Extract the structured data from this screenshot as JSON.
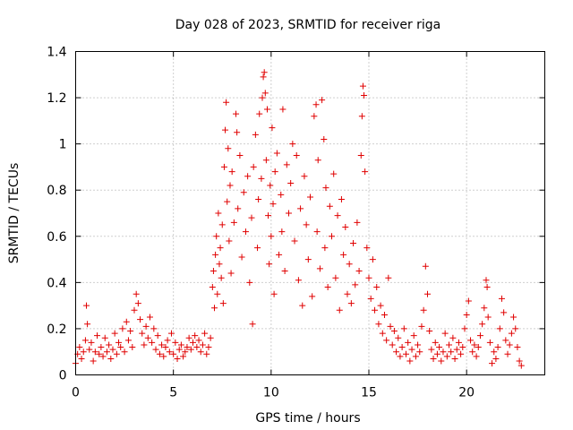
{
  "chart_data": {
    "type": "scatter",
    "title": "Day 028 of 2023, SRMTID for receiver riga",
    "xlabel": "GPS time / hours",
    "ylabel": "SRMTID / TECUs",
    "xlim": [
      0,
      24
    ],
    "ylim": [
      0,
      1.4
    ],
    "xticks": [
      0,
      5,
      10,
      15,
      20
    ],
    "xtick_labels": [
      "0",
      "5",
      "10",
      "15",
      "20"
    ],
    "yticks": [
      0,
      0.2,
      0.4,
      0.6,
      0.8,
      1.0,
      1.2,
      1.4
    ],
    "ytick_labels": [
      "0",
      "0.2",
      "0.4",
      "0.6",
      "0.8",
      "1",
      "1.2",
      "1.4"
    ],
    "grid": true,
    "marker": "+",
    "color": "#e00000",
    "series": [
      {
        "name": "SRMTID",
        "points": [
          [
            0.0,
            0.05
          ],
          [
            0.1,
            0.09
          ],
          [
            0.2,
            0.12
          ],
          [
            0.3,
            0.07
          ],
          [
            0.4,
            0.1
          ],
          [
            0.5,
            0.15
          ],
          [
            0.55,
            0.3
          ],
          [
            0.6,
            0.22
          ],
          [
            0.7,
            0.11
          ],
          [
            0.8,
            0.14
          ],
          [
            0.9,
            0.06
          ],
          [
            1.0,
            0.1
          ],
          [
            1.1,
            0.17
          ],
          [
            1.2,
            0.09
          ],
          [
            1.3,
            0.12
          ],
          [
            1.4,
            0.08
          ],
          [
            1.5,
            0.16
          ],
          [
            1.6,
            0.1
          ],
          [
            1.7,
            0.13
          ],
          [
            1.8,
            0.07
          ],
          [
            1.9,
            0.11
          ],
          [
            2.0,
            0.18
          ],
          [
            2.1,
            0.09
          ],
          [
            2.2,
            0.14
          ],
          [
            2.3,
            0.12
          ],
          [
            2.4,
            0.2
          ],
          [
            2.5,
            0.1
          ],
          [
            2.6,
            0.23
          ],
          [
            2.7,
            0.15
          ],
          [
            2.8,
            0.19
          ],
          [
            2.9,
            0.12
          ],
          [
            3.0,
            0.28
          ],
          [
            3.1,
            0.35
          ],
          [
            3.2,
            0.31
          ],
          [
            3.3,
            0.24
          ],
          [
            3.4,
            0.18
          ],
          [
            3.5,
            0.13
          ],
          [
            3.6,
            0.21
          ],
          [
            3.7,
            0.16
          ],
          [
            3.8,
            0.25
          ],
          [
            3.9,
            0.14
          ],
          [
            4.0,
            0.2
          ],
          [
            4.1,
            0.11
          ],
          [
            4.2,
            0.17
          ],
          [
            4.3,
            0.09
          ],
          [
            4.4,
            0.13
          ],
          [
            4.5,
            0.08
          ],
          [
            4.6,
            0.12
          ],
          [
            4.7,
            0.15
          ],
          [
            4.8,
            0.1
          ],
          [
            4.9,
            0.18
          ],
          [
            5.0,
            0.09
          ],
          [
            5.1,
            0.14
          ],
          [
            5.2,
            0.07
          ],
          [
            5.3,
            0.11
          ],
          [
            5.4,
            0.13
          ],
          [
            5.5,
            0.08
          ],
          [
            5.6,
            0.1
          ],
          [
            5.7,
            0.12
          ],
          [
            5.8,
            0.16
          ],
          [
            5.9,
            0.11
          ],
          [
            6.0,
            0.14
          ],
          [
            6.1,
            0.17
          ],
          [
            6.2,
            0.12
          ],
          [
            6.3,
            0.15
          ],
          [
            6.4,
            0.1
          ],
          [
            6.5,
            0.13
          ],
          [
            6.6,
            0.18
          ],
          [
            6.7,
            0.09
          ],
          [
            6.8,
            0.12
          ],
          [
            6.9,
            0.16
          ],
          [
            7.0,
            0.38
          ],
          [
            7.05,
            0.45
          ],
          [
            7.1,
            0.29
          ],
          [
            7.15,
            0.52
          ],
          [
            7.2,
            0.6
          ],
          [
            7.25,
            0.35
          ],
          [
            7.3,
            0.7
          ],
          [
            7.35,
            0.48
          ],
          [
            7.4,
            0.55
          ],
          [
            7.45,
            0.42
          ],
          [
            7.5,
            0.65
          ],
          [
            7.55,
            0.31
          ],
          [
            7.6,
            0.9
          ],
          [
            7.65,
            1.06
          ],
          [
            7.7,
            1.18
          ],
          [
            7.75,
            0.75
          ],
          [
            7.8,
            0.98
          ],
          [
            7.85,
            0.58
          ],
          [
            7.9,
            0.82
          ],
          [
            7.95,
            0.44
          ],
          [
            8.0,
            0.88
          ],
          [
            8.1,
            0.66
          ],
          [
            8.2,
            1.13
          ],
          [
            8.25,
            1.05
          ],
          [
            8.3,
            0.72
          ],
          [
            8.4,
            0.95
          ],
          [
            8.5,
            0.51
          ],
          [
            8.6,
            0.79
          ],
          [
            8.7,
            0.62
          ],
          [
            8.8,
            0.86
          ],
          [
            8.9,
            0.4
          ],
          [
            9.0,
            0.68
          ],
          [
            9.05,
            0.22
          ],
          [
            9.1,
            0.9
          ],
          [
            9.2,
            1.04
          ],
          [
            9.3,
            0.55
          ],
          [
            9.35,
            0.76
          ],
          [
            9.4,
            1.13
          ],
          [
            9.5,
            0.85
          ],
          [
            9.55,
            1.2
          ],
          [
            9.6,
            1.29
          ],
          [
            9.65,
            1.31
          ],
          [
            9.7,
            1.22
          ],
          [
            9.75,
            0.93
          ],
          [
            9.8,
            1.15
          ],
          [
            9.85,
            0.69
          ],
          [
            9.9,
            0.48
          ],
          [
            9.95,
            0.82
          ],
          [
            10.0,
            0.6
          ],
          [
            10.05,
            1.07
          ],
          [
            10.1,
            0.74
          ],
          [
            10.15,
            0.35
          ],
          [
            10.2,
            0.88
          ],
          [
            10.3,
            0.96
          ],
          [
            10.4,
            0.52
          ],
          [
            10.5,
            0.78
          ],
          [
            10.55,
            0.62
          ],
          [
            10.6,
            1.15
          ],
          [
            10.7,
            0.45
          ],
          [
            10.8,
            0.91
          ],
          [
            10.9,
            0.7
          ],
          [
            11.0,
            0.83
          ],
          [
            11.1,
            1.0
          ],
          [
            11.2,
            0.58
          ],
          [
            11.3,
            0.95
          ],
          [
            11.4,
            0.41
          ],
          [
            11.5,
            0.72
          ],
          [
            11.6,
            0.3
          ],
          [
            11.7,
            0.86
          ],
          [
            11.8,
            0.65
          ],
          [
            11.9,
            0.5
          ],
          [
            12.0,
            0.77
          ],
          [
            12.1,
            0.34
          ],
          [
            12.2,
            1.12
          ],
          [
            12.3,
            1.17
          ],
          [
            12.35,
            0.62
          ],
          [
            12.4,
            0.93
          ],
          [
            12.5,
            0.46
          ],
          [
            12.6,
            1.19
          ],
          [
            12.7,
            1.02
          ],
          [
            12.75,
            0.55
          ],
          [
            12.8,
            0.81
          ],
          [
            12.9,
            0.38
          ],
          [
            13.0,
            0.73
          ],
          [
            13.1,
            0.6
          ],
          [
            13.2,
            0.87
          ],
          [
            13.3,
            0.42
          ],
          [
            13.4,
            0.69
          ],
          [
            13.5,
            0.28
          ],
          [
            13.6,
            0.76
          ],
          [
            13.7,
            0.52
          ],
          [
            13.8,
            0.64
          ],
          [
            13.9,
            0.35
          ],
          [
            14.0,
            0.48
          ],
          [
            14.1,
            0.31
          ],
          [
            14.2,
            0.57
          ],
          [
            14.3,
            0.39
          ],
          [
            14.4,
            0.66
          ],
          [
            14.5,
            0.45
          ],
          [
            14.6,
            0.95
          ],
          [
            14.65,
            1.12
          ],
          [
            14.7,
            1.25
          ],
          [
            14.75,
            1.21
          ],
          [
            14.8,
            0.88
          ],
          [
            14.9,
            0.55
          ],
          [
            15.0,
            0.42
          ],
          [
            15.1,
            0.33
          ],
          [
            15.2,
            0.5
          ],
          [
            15.3,
            0.28
          ],
          [
            15.4,
            0.38
          ],
          [
            15.5,
            0.22
          ],
          [
            15.6,
            0.3
          ],
          [
            15.7,
            0.18
          ],
          [
            15.8,
            0.26
          ],
          [
            15.9,
            0.15
          ],
          [
            16.0,
            0.42
          ],
          [
            16.1,
            0.21
          ],
          [
            16.2,
            0.13
          ],
          [
            16.3,
            0.19
          ],
          [
            16.4,
            0.1
          ],
          [
            16.5,
            0.16
          ],
          [
            16.6,
            0.08
          ],
          [
            16.7,
            0.12
          ],
          [
            16.8,
            0.2
          ],
          [
            16.9,
            0.09
          ],
          [
            17.0,
            0.14
          ],
          [
            17.1,
            0.06
          ],
          [
            17.2,
            0.11
          ],
          [
            17.3,
            0.17
          ],
          [
            17.4,
            0.08
          ],
          [
            17.5,
            0.13
          ],
          [
            17.6,
            0.1
          ],
          [
            17.7,
            0.21
          ],
          [
            17.8,
            0.28
          ],
          [
            17.9,
            0.47
          ],
          [
            18.0,
            0.35
          ],
          [
            18.1,
            0.19
          ],
          [
            18.2,
            0.11
          ],
          [
            18.3,
            0.07
          ],
          [
            18.4,
            0.14
          ],
          [
            18.5,
            0.09
          ],
          [
            18.6,
            0.12
          ],
          [
            18.7,
            0.06
          ],
          [
            18.8,
            0.1
          ],
          [
            18.9,
            0.18
          ],
          [
            19.0,
            0.08
          ],
          [
            19.1,
            0.13
          ],
          [
            19.2,
            0.1
          ],
          [
            19.3,
            0.16
          ],
          [
            19.4,
            0.07
          ],
          [
            19.5,
            0.11
          ],
          [
            19.6,
            0.14
          ],
          [
            19.7,
            0.09
          ],
          [
            19.8,
            0.12
          ],
          [
            19.9,
            0.2
          ],
          [
            20.0,
            0.26
          ],
          [
            20.1,
            0.32
          ],
          [
            20.2,
            0.15
          ],
          [
            20.3,
            0.1
          ],
          [
            20.4,
            0.13
          ],
          [
            20.5,
            0.08
          ],
          [
            20.6,
            0.12
          ],
          [
            20.7,
            0.17
          ],
          [
            20.8,
            0.22
          ],
          [
            20.9,
            0.29
          ],
          [
            21.0,
            0.41
          ],
          [
            21.05,
            0.38
          ],
          [
            21.1,
            0.25
          ],
          [
            21.2,
            0.14
          ],
          [
            21.3,
            0.05
          ],
          [
            21.4,
            0.1
          ],
          [
            21.5,
            0.07
          ],
          [
            21.6,
            0.12
          ],
          [
            21.7,
            0.2
          ],
          [
            21.8,
            0.33
          ],
          [
            21.9,
            0.27
          ],
          [
            22.0,
            0.15
          ],
          [
            22.1,
            0.09
          ],
          [
            22.2,
            0.13
          ],
          [
            22.3,
            0.18
          ],
          [
            22.4,
            0.25
          ],
          [
            22.5,
            0.2
          ],
          [
            22.6,
            0.12
          ],
          [
            22.7,
            0.06
          ],
          [
            22.8,
            0.04
          ]
        ]
      }
    ]
  }
}
